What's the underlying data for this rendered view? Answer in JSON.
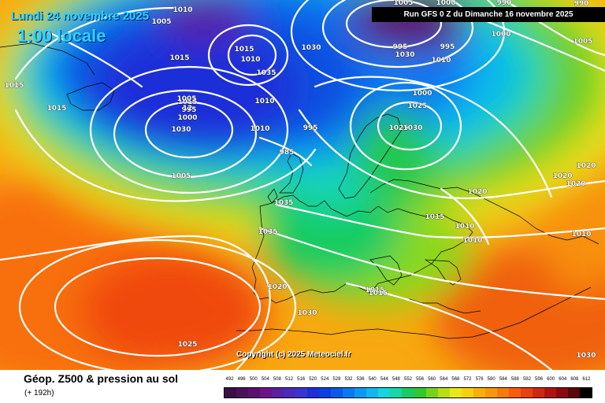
{
  "header": {
    "date": "Lundi 24 novembre 2025",
    "local_time": "1:00 locale",
    "run_info": "Run GFS 0 Z du Dimanche 16 novembre 2025"
  },
  "copyright": "Copyright (c) 2025 Meteociel.fr",
  "legend": {
    "title": "Géop. Z500 & pression au sol",
    "step": "(+ 192h)",
    "scale_values": [
      "492",
      "496",
      "500",
      "504",
      "508",
      "512",
      "516",
      "520",
      "524",
      "528",
      "532",
      "536",
      "540",
      "544",
      "548",
      "552",
      "556",
      "560",
      "564",
      "568",
      "572",
      "576",
      "580",
      "584",
      "588",
      "592",
      "596",
      "600",
      "604",
      "608",
      "612"
    ],
    "scale_colors": [
      "#3b0f45",
      "#4a1058",
      "#5a1070",
      "#6a1488",
      "#5a20a0",
      "#4a2ab8",
      "#3a34d0",
      "#1f2fd8",
      "#0a3fe0",
      "#0a5ae8",
      "#0a78f0",
      "#0a98f5",
      "#0fb8f0",
      "#12d6e0",
      "#14d8a8",
      "#18cc60",
      "#2ec830",
      "#78d21a",
      "#b8de16",
      "#e8e81a",
      "#f8d010",
      "#f8b008",
      "#f89808",
      "#f87a08",
      "#f85c0a",
      "#e8400e",
      "#d02810",
      "#b01410",
      "#8a0a10",
      "#5a0808",
      "#000000"
    ]
  },
  "map": {
    "isobars": [
      {
        "label": "1010",
        "color": "white"
      },
      {
        "label": "1005",
        "color": "white"
      },
      {
        "label": "995",
        "color": "white"
      },
      {
        "label": "1000",
        "color": "white"
      },
      {
        "label": "1030",
        "color": "white"
      },
      {
        "label": "1015",
        "color": "white"
      },
      {
        "label": "1010",
        "color": "white"
      },
      {
        "label": "1035",
        "color": "white"
      },
      {
        "label": "1030",
        "color": "white"
      },
      {
        "label": "1015",
        "color": "white"
      },
      {
        "label": "1005",
        "color": "white"
      },
      {
        "label": "1010",
        "color": "white"
      },
      {
        "label": "1010",
        "color": "white"
      },
      {
        "label": "995",
        "color": "white"
      },
      {
        "label": "985",
        "color": "white"
      },
      {
        "label": "1005",
        "color": "white"
      },
      {
        "label": "1005",
        "color": "white"
      },
      {
        "label": "1000",
        "color": "white"
      },
      {
        "label": "990",
        "color": "white"
      },
      {
        "label": "990",
        "color": "white"
      },
      {
        "label": "995",
        "color": "white"
      },
      {
        "label": "1030",
        "color": "white"
      },
      {
        "label": "995",
        "color": "white"
      },
      {
        "label": "1000",
        "color": "white"
      },
      {
        "label": "1005",
        "color": "white"
      },
      {
        "label": "1000",
        "color": "white"
      },
      {
        "label": "1025",
        "color": "white"
      },
      {
        "label": "1025",
        "color": "white"
      },
      {
        "label": "1030",
        "color": "white"
      },
      {
        "label": "1010",
        "color": "white"
      },
      {
        "label": "1035",
        "color": "white"
      },
      {
        "label": "1035",
        "color": "white"
      },
      {
        "label": "1020",
        "color": "white"
      },
      {
        "label": "1020",
        "color": "white"
      },
      {
        "label": "1020",
        "color": "white"
      },
      {
        "label": "1015",
        "color": "white"
      },
      {
        "label": "1010",
        "color": "white"
      },
      {
        "label": "1010",
        "color": "white"
      },
      {
        "label": "1010",
        "color": "white"
      },
      {
        "label": "1020",
        "color": "white"
      },
      {
        "label": "1020",
        "color": "white"
      },
      {
        "label": "1030",
        "color": "white"
      },
      {
        "label": "1015",
        "color": "white"
      },
      {
        "label": "1015",
        "color": "white"
      },
      {
        "label": "1025",
        "color": "white"
      },
      {
        "label": "1030",
        "color": "white"
      },
      {
        "label": "1015",
        "color": "white"
      },
      {
        "label": "1015",
        "color": "white"
      },
      {
        "label": "1015",
        "color": "white"
      },
      {
        "label": "12",
        "color": "white"
      }
    ]
  }
}
